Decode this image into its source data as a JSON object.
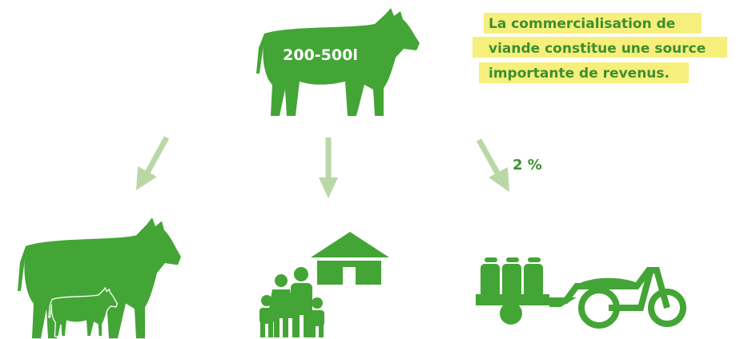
{
  "cow_label": "200-500l",
  "note": {
    "lines": [
      "La commercialisation de",
      "viande constitue une source",
      "importante de revenus."
    ]
  },
  "share_label": "2 %"
}
